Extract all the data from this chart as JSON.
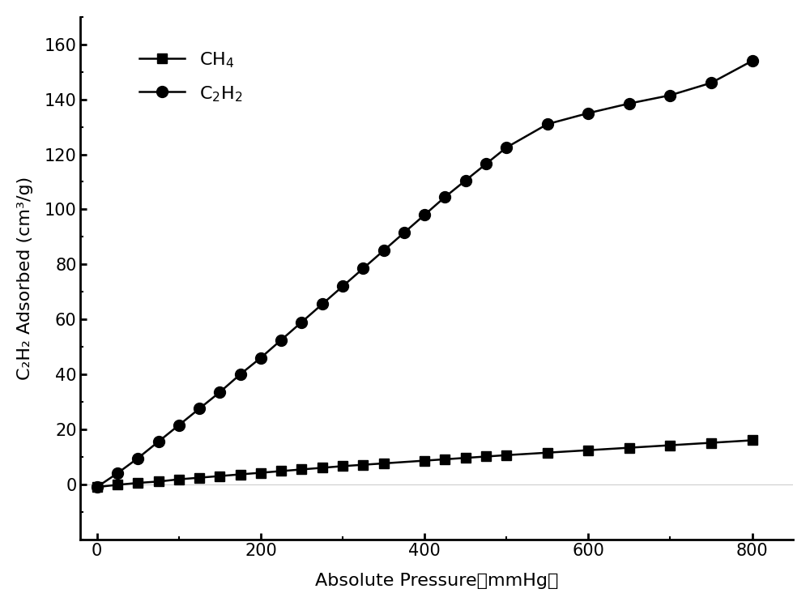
{
  "ch4_pressure": [
    0,
    25,
    50,
    75,
    100,
    125,
    150,
    175,
    200,
    225,
    250,
    275,
    300,
    325,
    350,
    400,
    425,
    450,
    475,
    500,
    550,
    600,
    650,
    700,
    750,
    800
  ],
  "ch4_adsorbed": [
    -1.0,
    -0.2,
    0.5,
    1.0,
    1.8,
    2.4,
    3.0,
    3.6,
    4.2,
    4.8,
    5.4,
    6.0,
    6.6,
    7.1,
    7.6,
    8.6,
    9.1,
    9.6,
    10.1,
    10.6,
    11.5,
    12.4,
    13.3,
    14.2,
    15.1,
    16.0
  ],
  "c2h2_pressure": [
    0,
    25,
    50,
    75,
    100,
    125,
    150,
    175,
    200,
    225,
    250,
    275,
    300,
    325,
    350,
    375,
    400,
    425,
    450,
    475,
    500,
    550,
    600,
    650,
    700,
    750,
    800
  ],
  "c2h2_adsorbed": [
    -1.0,
    4.0,
    9.5,
    15.5,
    21.5,
    27.5,
    33.5,
    40.0,
    46.0,
    52.5,
    59.0,
    65.5,
    72.0,
    78.5,
    85.0,
    91.5,
    98.0,
    104.5,
    110.5,
    116.5,
    122.5,
    131.0,
    135.0,
    138.5,
    141.5,
    146.0,
    154.0
  ],
  "xlabel": "Absolute Pressure（mmHg）",
  "ylabel": "C₂H₂ Adsorbed (cm³/g)",
  "xlim": [
    -20,
    850
  ],
  "ylim": [
    -20,
    170
  ],
  "yticks": [
    0,
    20,
    40,
    60,
    80,
    100,
    120,
    140,
    160
  ],
  "xticks": [
    0,
    200,
    400,
    600,
    800
  ],
  "line_color": "#000000",
  "marker_ch4": "s",
  "marker_c2h2": "o",
  "marker_size_ch4": 8,
  "marker_size_c2h2": 10,
  "legend_ch4": "CH$_4$",
  "legend_c2h2": "C$_2$H$_2$",
  "background_color": "#ffffff",
  "linewidth": 1.8,
  "label_fontsize": 16,
  "tick_fontsize": 15,
  "legend_fontsize": 16
}
